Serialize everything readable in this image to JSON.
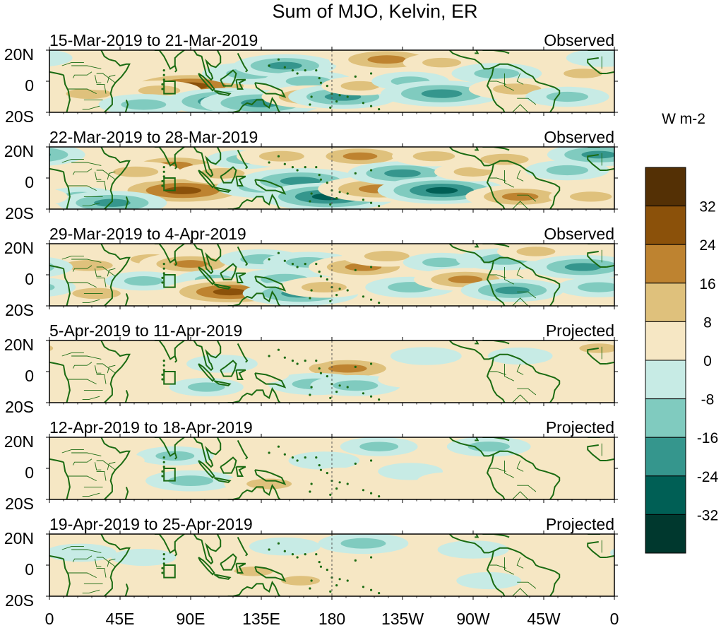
{
  "chart_data": {
    "type": "heatmap",
    "title": "Sum of MJO, Kelvin, ER",
    "colorbar": {
      "label": "W m-2",
      "levels": [
        -32,
        -24,
        -16,
        -8,
        0,
        8,
        16,
        24,
        32
      ],
      "colors": [
        "#00382e",
        "#005f55",
        "#35968d",
        "#80cbbf",
        "#c7ebe5",
        "#f6e7c4",
        "#dfc17c",
        "#be8330",
        "#8b510a",
        "#543005"
      ]
    },
    "x_tick_labels": [
      "0",
      "45E",
      "90E",
      "135E",
      "180",
      "135W",
      "90W",
      "45W",
      "0"
    ],
    "y_tick_labels": [
      "20N",
      "0",
      "20S"
    ],
    "x_range_deg": [
      0,
      360
    ],
    "y_range_deg": [
      -20,
      20
    ],
    "panels": [
      {
        "period": "15-Mar-2019 to 21-Mar-2019",
        "status": "Observed",
        "anomalies": [
          {
            "lon": 90,
            "lat": -3,
            "value": 30
          },
          {
            "lon": 25,
            "lat": -8,
            "value": 14
          },
          {
            "lon": 35,
            "lat": 0,
            "value": 8
          },
          {
            "lon": 70,
            "lat": -6,
            "value": 12
          },
          {
            "lon": 60,
            "lat": -15,
            "value": -14
          },
          {
            "lon": 115,
            "lat": -13,
            "value": -26
          },
          {
            "lon": 135,
            "lat": -14,
            "value": -24
          },
          {
            "lon": 128,
            "lat": 5,
            "value": -16
          },
          {
            "lon": 150,
            "lat": 10,
            "value": -18
          },
          {
            "lon": 165,
            "lat": 0,
            "value": -14
          },
          {
            "lon": 168,
            "lat": -10,
            "value": 18
          },
          {
            "lon": 187,
            "lat": -10,
            "value": -20
          },
          {
            "lon": 198,
            "lat": -3,
            "value": 10
          },
          {
            "lon": 215,
            "lat": 14,
            "value": 22
          },
          {
            "lon": 230,
            "lat": 0,
            "value": -10
          },
          {
            "lon": 250,
            "lat": 12,
            "value": 10
          },
          {
            "lon": 250,
            "lat": -8,
            "value": -24
          },
          {
            "lon": 285,
            "lat": 5,
            "value": -14
          },
          {
            "lon": 298,
            "lat": -5,
            "value": 16
          },
          {
            "lon": 330,
            "lat": -10,
            "value": -12
          },
          {
            "lon": 340,
            "lat": 5,
            "value": 10
          },
          {
            "lon": 352,
            "lat": 15,
            "value": -8
          }
        ]
      },
      {
        "period": "22-Mar-2019 to 28-Mar-2019",
        "status": "Observed",
        "anomalies": [
          {
            "lon": 85,
            "lat": -8,
            "value": 32
          },
          {
            "lon": 80,
            "lat": 8,
            "value": 20
          },
          {
            "lon": 55,
            "lat": 4,
            "value": 14
          },
          {
            "lon": 20,
            "lat": -12,
            "value": -10
          },
          {
            "lon": 40,
            "lat": -16,
            "value": -20
          },
          {
            "lon": 110,
            "lat": 3,
            "value": 14
          },
          {
            "lon": 125,
            "lat": 12,
            "value": -10
          },
          {
            "lon": 135,
            "lat": -6,
            "value": -14
          },
          {
            "lon": 160,
            "lat": -2,
            "value": -24
          },
          {
            "lon": 178,
            "lat": -12,
            "value": -28
          },
          {
            "lon": 148,
            "lat": 14,
            "value": 14
          },
          {
            "lon": 198,
            "lat": 14,
            "value": 18
          },
          {
            "lon": 210,
            "lat": -7,
            "value": 24
          },
          {
            "lon": 225,
            "lat": 3,
            "value": -20
          },
          {
            "lon": 245,
            "lat": 14,
            "value": 12
          },
          {
            "lon": 250,
            "lat": -8,
            "value": -26
          },
          {
            "lon": 270,
            "lat": 4,
            "value": 10
          },
          {
            "lon": 290,
            "lat": 12,
            "value": 16
          },
          {
            "lon": 300,
            "lat": -12,
            "value": 20
          },
          {
            "lon": 330,
            "lat": 5,
            "value": -12
          },
          {
            "lon": 350,
            "lat": 15,
            "value": -18
          },
          {
            "lon": 345,
            "lat": -12,
            "value": 12
          }
        ]
      },
      {
        "period": "29-Mar-2019 to 4-Apr-2019",
        "status": "Observed",
        "anomalies": [
          {
            "lon": 25,
            "lat": 6,
            "value": 16
          },
          {
            "lon": 30,
            "lat": -12,
            "value": 16
          },
          {
            "lon": 65,
            "lat": 10,
            "value": 12
          },
          {
            "lon": 90,
            "lat": 7,
            "value": 18
          },
          {
            "lon": 60,
            "lat": -4,
            "value": -10
          },
          {
            "lon": 105,
            "lat": -3,
            "value": -10
          },
          {
            "lon": 115,
            "lat": -11,
            "value": 28
          },
          {
            "lon": 135,
            "lat": 10,
            "value": -12
          },
          {
            "lon": 150,
            "lat": -3,
            "value": -16
          },
          {
            "lon": 160,
            "lat": -12,
            "value": -22
          },
          {
            "lon": 165,
            "lat": 8,
            "value": -14
          },
          {
            "lon": 175,
            "lat": -8,
            "value": 14
          },
          {
            "lon": 200,
            "lat": 5,
            "value": 20
          },
          {
            "lon": 215,
            "lat": 12,
            "value": 14
          },
          {
            "lon": 230,
            "lat": -8,
            "value": -14
          },
          {
            "lon": 250,
            "lat": 8,
            "value": -10
          },
          {
            "lon": 265,
            "lat": -3,
            "value": 18
          },
          {
            "lon": 290,
            "lat": 10,
            "value": -16
          },
          {
            "lon": 295,
            "lat": -10,
            "value": -18
          },
          {
            "lon": 310,
            "lat": 15,
            "value": 10
          },
          {
            "lon": 340,
            "lat": 5,
            "value": -20
          },
          {
            "lon": 350,
            "lat": -8,
            "value": -12
          }
        ]
      },
      {
        "period": "5-Apr-2019 to 11-Apr-2019",
        "status": "Projected",
        "anomalies": [
          {
            "lon": 190,
            "lat": 2,
            "value": 22
          },
          {
            "lon": 170,
            "lat": -8,
            "value": -16
          },
          {
            "lon": 195,
            "lat": -9,
            "value": -14
          },
          {
            "lon": 130,
            "lat": -2,
            "value": 8
          },
          {
            "lon": 160,
            "lat": 10,
            "value": 8
          },
          {
            "lon": 110,
            "lat": 5,
            "value": -8
          },
          {
            "lon": 100,
            "lat": -10,
            "value": -9
          },
          {
            "lon": 60,
            "lat": 5,
            "value": 8
          },
          {
            "lon": 45,
            "lat": -12,
            "value": 6
          },
          {
            "lon": 240,
            "lat": 10,
            "value": -8
          },
          {
            "lon": 230,
            "lat": -5,
            "value": 6
          },
          {
            "lon": 270,
            "lat": -10,
            "value": 5
          },
          {
            "lon": 350,
            "lat": 15,
            "value": 10
          },
          {
            "lon": 300,
            "lat": 10,
            "value": -6
          }
        ]
      },
      {
        "period": "12-Apr-2019 to 18-Apr-2019",
        "status": "Projected",
        "anomalies": [
          {
            "lon": 90,
            "lat": -8,
            "value": -14
          },
          {
            "lon": 80,
            "lat": 8,
            "value": -10
          },
          {
            "lon": 125,
            "lat": 4,
            "value": 8
          },
          {
            "lon": 140,
            "lat": -10,
            "value": 14
          },
          {
            "lon": 150,
            "lat": 12,
            "value": 8
          },
          {
            "lon": 175,
            "lat": 5,
            "value": -8
          },
          {
            "lon": 210,
            "lat": 14,
            "value": -10
          },
          {
            "lon": 185,
            "lat": -5,
            "value": 6
          },
          {
            "lon": 230,
            "lat": -2,
            "value": -6
          },
          {
            "lon": 255,
            "lat": -8,
            "value": 6
          },
          {
            "lon": 280,
            "lat": 14,
            "value": -12
          },
          {
            "lon": 320,
            "lat": -5,
            "value": 6
          },
          {
            "lon": 345,
            "lat": 10,
            "value": 8
          },
          {
            "lon": 40,
            "lat": 5,
            "value": 6
          }
        ]
      },
      {
        "period": "19-Apr-2019 to 25-Apr-2019",
        "status": "Projected",
        "anomalies": [
          {
            "lon": 200,
            "lat": 14,
            "value": -14
          },
          {
            "lon": 150,
            "lat": 12,
            "value": -8
          },
          {
            "lon": 130,
            "lat": -4,
            "value": 10
          },
          {
            "lon": 100,
            "lat": -8,
            "value": 8
          },
          {
            "lon": 160,
            "lat": -10,
            "value": 10
          },
          {
            "lon": 240,
            "lat": -4,
            "value": 8
          },
          {
            "lon": 270,
            "lat": 10,
            "value": -8
          },
          {
            "lon": 280,
            "lat": -10,
            "value": -6
          },
          {
            "lon": 320,
            "lat": 8,
            "value": 6
          },
          {
            "lon": 60,
            "lat": 5,
            "value": -6
          },
          {
            "lon": 40,
            "lat": -10,
            "value": 6
          },
          {
            "lon": 20,
            "lat": 8,
            "value": -8
          }
        ]
      }
    ]
  }
}
